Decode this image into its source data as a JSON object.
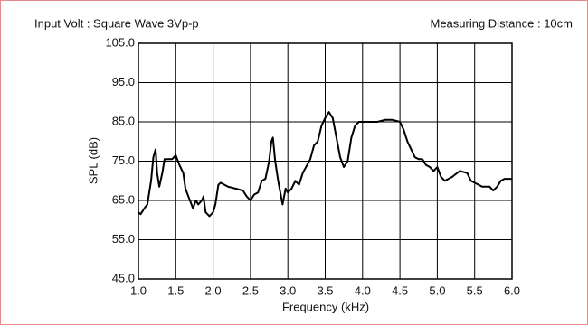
{
  "chart_data": {
    "type": "line",
    "annotations": [
      "Input Volt : Square Wave 3Vp-p",
      "Measuring Distance : 10cm"
    ],
    "xlabel": "Frequency (kHz)",
    "ylabel": "SPL (dB)",
    "color": "#000000",
    "grid": true,
    "xlim": [
      1.0,
      6.0
    ],
    "xticks": [
      {
        "value": 1,
        "label": "1.0"
      },
      1.5,
      {
        "value": 2,
        "label": "2.0"
      },
      2.5,
      {
        "value": 3,
        "label": "3.0"
      },
      3.5,
      {
        "value": 4,
        "label": "4.0"
      },
      4.5,
      {
        "value": 5,
        "label": "5.0"
      },
      5.5,
      {
        "value": 6,
        "label": "6.0"
      }
    ],
    "ylim": [
      45,
      105
    ],
    "yticks": [
      {
        "value": 45,
        "label": "45.0"
      },
      {
        "value": 55,
        "label": "55.0"
      },
      {
        "value": 65,
        "label": "65.0"
      },
      {
        "value": 75,
        "label": "75.0"
      },
      {
        "value": 85,
        "label": "85.0"
      },
      {
        "value": 95,
        "label": "95.0"
      },
      {
        "value": 105,
        "label": "105.0"
      }
    ],
    "x": [
      1.0,
      1.03,
      1.08,
      1.12,
      1.17,
      1.2,
      1.23,
      1.25,
      1.28,
      1.32,
      1.35,
      1.4,
      1.45,
      1.5,
      1.55,
      1.6,
      1.63,
      1.67,
      1.7,
      1.73,
      1.77,
      1.8,
      1.85,
      1.87,
      1.9,
      1.95,
      2.0,
      2.03,
      2.07,
      2.1,
      2.15,
      2.2,
      2.3,
      2.4,
      2.45,
      2.5,
      2.55,
      2.6,
      2.65,
      2.7,
      2.75,
      2.78,
      2.8,
      2.83,
      2.87,
      2.9,
      2.93,
      2.97,
      3.0,
      3.05,
      3.1,
      3.15,
      3.2,
      3.3,
      3.35,
      3.4,
      3.45,
      3.5,
      3.55,
      3.6,
      3.65,
      3.7,
      3.75,
      3.8,
      3.85,
      3.9,
      3.95,
      4.0,
      4.1,
      4.2,
      4.3,
      4.4,
      4.5,
      4.55,
      4.6,
      4.65,
      4.7,
      4.75,
      4.8,
      4.85,
      4.9,
      4.95,
      5.0,
      5.05,
      5.1,
      5.15,
      5.2,
      5.3,
      5.4,
      5.45,
      5.5,
      5.6,
      5.65,
      5.7,
      5.75,
      5.8,
      5.85,
      5.9,
      6.0
    ],
    "values": [
      62,
      61.5,
      63,
      64,
      70,
      76,
      78,
      72,
      68.5,
      72,
      75.5,
      75.5,
      75.5,
      76.5,
      74,
      72,
      68,
      66,
      64.5,
      63,
      65,
      64,
      65,
      66,
      62,
      61,
      62,
      64,
      69,
      69.5,
      69,
      68.5,
      68,
      67.5,
      66,
      65,
      66.5,
      67,
      70,
      70.5,
      75,
      80,
      81,
      75,
      70,
      67,
      64,
      68,
      67,
      68,
      70,
      69,
      72,
      75.5,
      79,
      80,
      84,
      86,
      87.5,
      86,
      81,
      76,
      73.5,
      75,
      81,
      84,
      85,
      85,
      85,
      85,
      85.5,
      85.5,
      85,
      83,
      80,
      78,
      76,
      75.5,
      75.5,
      74,
      73.5,
      72.5,
      73.5,
      71,
      70,
      70.5,
      71,
      72.5,
      72,
      70,
      69.5,
      68.5,
      68.5,
      68.5,
      67.5,
      68.5,
      70,
      70.5,
      70.5
    ]
  }
}
